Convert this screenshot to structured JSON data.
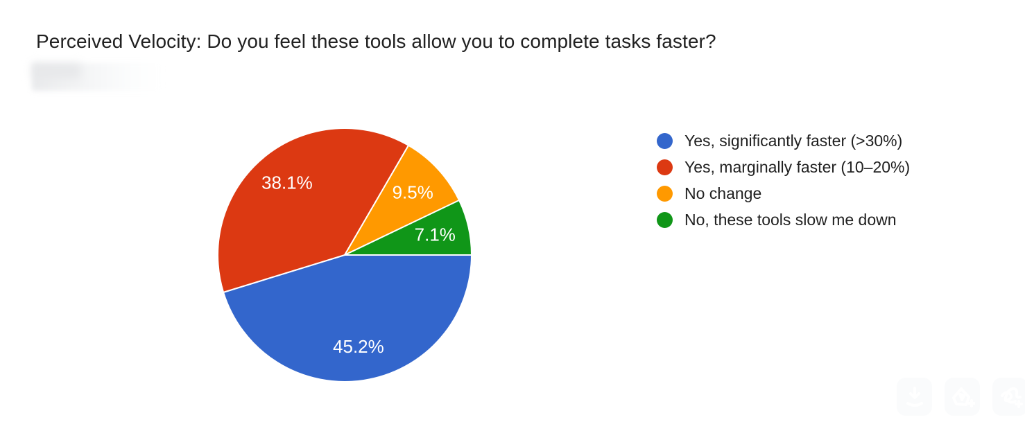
{
  "header": {
    "title": "Perceived Velocity: Do you feel these tools allow you to complete tasks faster?",
    "subtitle_redacted": true
  },
  "chart_data": {
    "type": "pie",
    "title": "Perceived Velocity: Do you feel these tools allow you to complete tasks faster?",
    "direction": "clockwise",
    "start_angle_deg": 0,
    "legend_position": "right",
    "value_labels": "percent-inside",
    "slices": [
      {
        "label": "Yes, significantly faster (>30%)",
        "value": 45.2,
        "value_label": "45.2%",
        "color": "#3366cc"
      },
      {
        "label": "Yes, marginally faster (10–20%)",
        "value": 38.1,
        "value_label": "38.1%",
        "color": "#dc3912"
      },
      {
        "label": "No change",
        "value": 9.5,
        "value_label": "9.5%",
        "color": "#ff9900"
      },
      {
        "label": "No, these tools slow me down",
        "value": 7.1,
        "value_label": "7.1%",
        "color": "#109618"
      }
    ]
  },
  "legend": {
    "items": [
      {
        "label": "Yes, significantly faster (>30%)",
        "color": "#3366cc"
      },
      {
        "label": "Yes, marginally faster (10–20%)",
        "color": "#dc3912"
      },
      {
        "label": "No change",
        "color": "#ff9900"
      },
      {
        "label": "No, these tools slow me down",
        "color": "#109618"
      }
    ]
  },
  "overlay_toolbar": {
    "buttons": [
      {
        "id": "download",
        "icon": "download-icon"
      },
      {
        "id": "triangle-add",
        "icon": "triangle-plus-icon"
      },
      {
        "id": "scribble-add",
        "icon": "scribble-plus-icon"
      }
    ]
  }
}
